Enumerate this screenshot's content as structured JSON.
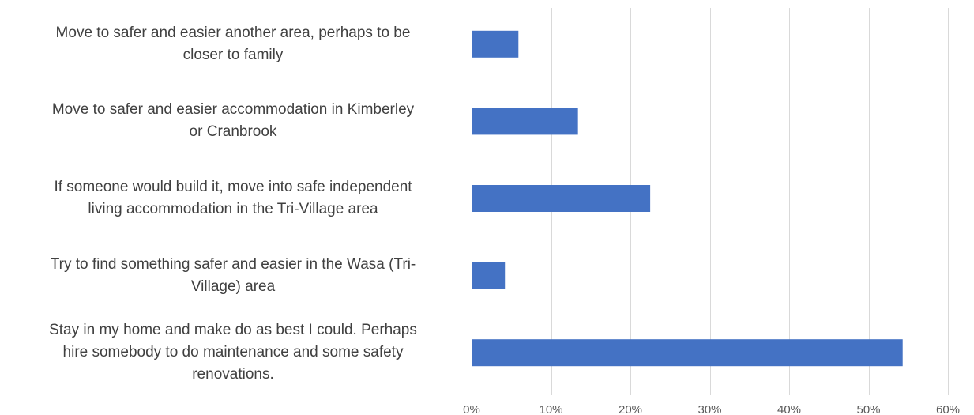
{
  "chart_data": {
    "type": "bar",
    "orientation": "horizontal",
    "categories": [
      "Move to safer and easier another area, perhaps to be closer to family",
      "Move to safer and easier accommodation in Kimberley or Cranbrook",
      "If someone would build it, move into safe independent living accommodation in the Tri-Village area",
      "Try to find something safer and easier in the Wasa (Tri-Village) area",
      "Stay in my home and make do as best I could. Perhaps hire somebody to do maintenance and some safety renovations."
    ],
    "category_lines": [
      [
        "Move to safer and easier another area, perhaps to be",
        "closer to family"
      ],
      [
        "Move to safer and easier accommodation in Kimberley",
        "or Cranbrook"
      ],
      [
        "If someone would build it, move into safe independent",
        "living accommodation in the Tri-Village area"
      ],
      [
        "Try to find something safer and easier in the Wasa (Tri-",
        "Village) area"
      ],
      [
        "Stay in my home and make do as best I could. Perhaps",
        "hire somebody to do maintenance and some safety",
        "renovations."
      ]
    ],
    "values": [
      5.9,
      13.4,
      22.5,
      4.2,
      54.3
    ],
    "xlim": [
      0,
      60
    ],
    "xticks": [
      0,
      10,
      20,
      30,
      40,
      50,
      60
    ],
    "xtick_labels": [
      "0%",
      "10%",
      "20%",
      "30%",
      "40%",
      "50%",
      "60%"
    ],
    "grid": "vertical",
    "legend": "none",
    "title": "",
    "xlabel": "",
    "ylabel": "",
    "bar_color": "#4472C4",
    "grid_color": "#D9D9D9",
    "text_color": "#595959",
    "label_color": "#404040"
  }
}
